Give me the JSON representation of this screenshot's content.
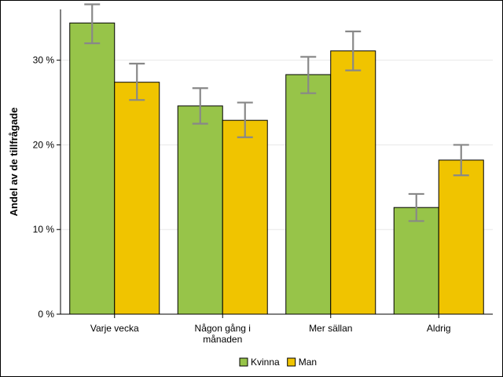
{
  "chart_data": {
    "type": "bar",
    "title": "",
    "xlabel": "",
    "ylabel": "Andel av de tillfrågade",
    "ylim": [
      0,
      36
    ],
    "yticks": [
      0,
      10,
      20,
      30
    ],
    "ytick_labels": [
      "0 %",
      "10 %",
      "20 %",
      "30 %"
    ],
    "categories": [
      "Varje vecka",
      "Någon gång i månaden",
      "Mer sällan",
      "Aldrig"
    ],
    "category_labels": [
      [
        "Varje vecka"
      ],
      [
        "Någon gång i",
        "månaden"
      ],
      [
        "Mer sällan"
      ],
      [
        "Aldrig"
      ]
    ],
    "series": [
      {
        "name": "Kvinna",
        "color": "#97c449",
        "values": [
          34.4,
          24.6,
          28.3,
          12.6
        ],
        "error_low": [
          32.0,
          22.5,
          26.1,
          11.0
        ],
        "error_high": [
          36.6,
          26.7,
          30.4,
          14.2
        ]
      },
      {
        "name": "Man",
        "color": "#f0c400",
        "values": [
          27.4,
          22.9,
          31.1,
          18.2
        ],
        "error_low": [
          25.3,
          20.9,
          28.8,
          16.4
        ],
        "error_high": [
          29.6,
          25.0,
          33.4,
          20.0
        ]
      }
    ],
    "error_bar_color": "#888888",
    "grid": true,
    "legend": {
      "position": "bottom-center",
      "entries": [
        "Kvinna",
        "Man"
      ]
    }
  }
}
